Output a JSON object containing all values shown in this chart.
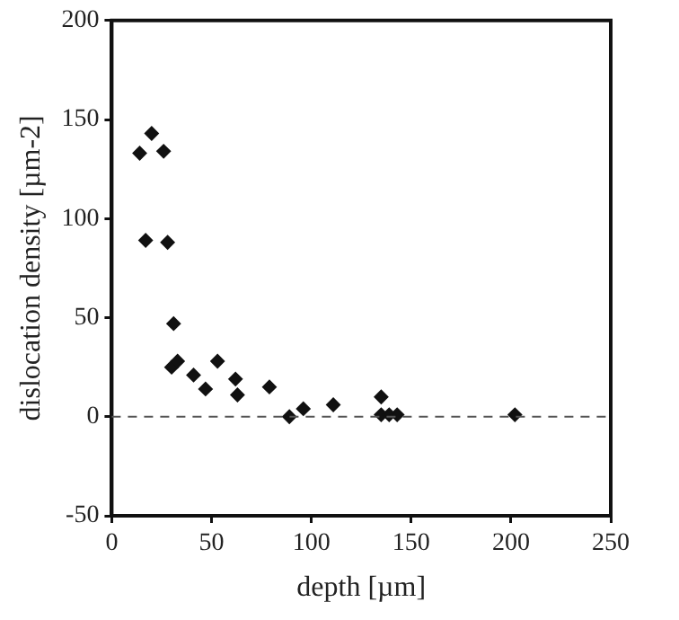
{
  "chart_data": {
    "type": "scatter",
    "xlabel": "depth [µm]",
    "ylabel": "dislocation density [µm-2]",
    "x": [
      14,
      20,
      26,
      17,
      28,
      31,
      30,
      33,
      41,
      47,
      53,
      62,
      63,
      79,
      89,
      96,
      111,
      135,
      135,
      139,
      143,
      202
    ],
    "values": [
      133,
      143,
      134,
      89,
      88,
      47,
      25,
      28,
      21,
      14,
      28,
      19,
      11,
      15,
      0,
      4,
      6,
      10,
      1,
      1,
      1,
      1
    ],
    "color": "#111111",
    "marker": "diamond",
    "xlim": [
      0,
      250
    ],
    "xticks": [
      0,
      50,
      100,
      150,
      200,
      250
    ],
    "ylim": [
      -50,
      200
    ],
    "yticks": [
      -50,
      0,
      50,
      100,
      150,
      200
    ],
    "grid": false,
    "legend": false,
    "ref_lines": [
      {
        "axis": "y",
        "value": 0,
        "color": "#555555",
        "line_style": "dashed"
      }
    ]
  }
}
